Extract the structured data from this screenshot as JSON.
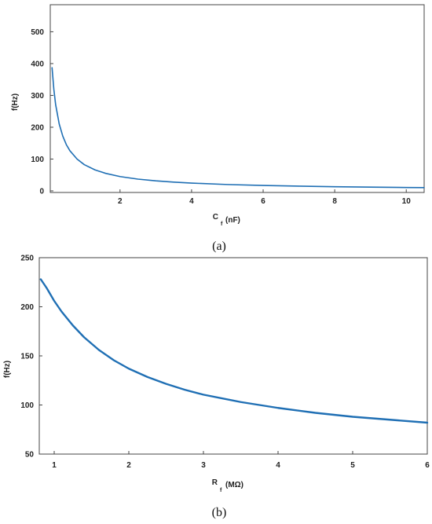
{
  "chart_data": [
    {
      "type": "line",
      "caption": "(a)",
      "ylabel": "f(Hz)",
      "xlabel_main": "C",
      "xlabel_sub": "f",
      "xlabel_unit": "(nF)",
      "xlim": [
        0.05,
        10.5
      ],
      "ylim": [
        -5,
        585
      ],
      "xticks": [
        "2",
        "4",
        "6",
        "8",
        "10"
      ],
      "yticks": [
        "0",
        "100",
        "200",
        "300",
        "400",
        "500"
      ],
      "grid": false,
      "color": "#1f6fb4",
      "series": [
        {
          "x": [
            0.1,
            0.15,
            0.2,
            0.3,
            0.4,
            0.5,
            0.6,
            0.8,
            1.0,
            1.3,
            1.6,
            2.0,
            2.5,
            3.0,
            3.5,
            4.0,
            5.0,
            6.0,
            7.0,
            8.0,
            9.0,
            10.0,
            10.5
          ],
          "y": [
            387,
            319,
            271,
            210,
            172,
            145,
            126,
            100,
            82.5,
            66,
            55,
            45,
            37,
            31.5,
            27.5,
            24.5,
            20,
            17,
            14.8,
            13.1,
            11.8,
            10.7,
            10.2
          ]
        }
      ]
    },
    {
      "type": "line",
      "caption": "(b)",
      "ylabel": "f(Hz)",
      "xlabel_main": "R",
      "xlabel_sub": "f",
      "xlabel_unit": "(MΩ)",
      "xlim": [
        0.8,
        6
      ],
      "ylim": [
        50,
        250
      ],
      "xticks": [
        "1",
        "2",
        "3",
        "4",
        "5",
        "6"
      ],
      "yticks": [
        "50",
        "100",
        "150",
        "200",
        "250"
      ],
      "grid": false,
      "color": "#1f6fb4",
      "series": [
        {
          "x": [
            0.82,
            0.9,
            1.0,
            1.1,
            1.25,
            1.4,
            1.6,
            1.8,
            2.0,
            2.25,
            2.5,
            2.75,
            3.0,
            3.5,
            4.0,
            4.5,
            5.0,
            5.5,
            6.0
          ],
          "y": [
            228,
            219,
            206,
            195,
            181,
            169,
            156,
            145.5,
            137,
            128.5,
            121.5,
            115.5,
            110.5,
            103,
            97,
            92,
            88,
            85,
            82
          ]
        }
      ]
    }
  ]
}
